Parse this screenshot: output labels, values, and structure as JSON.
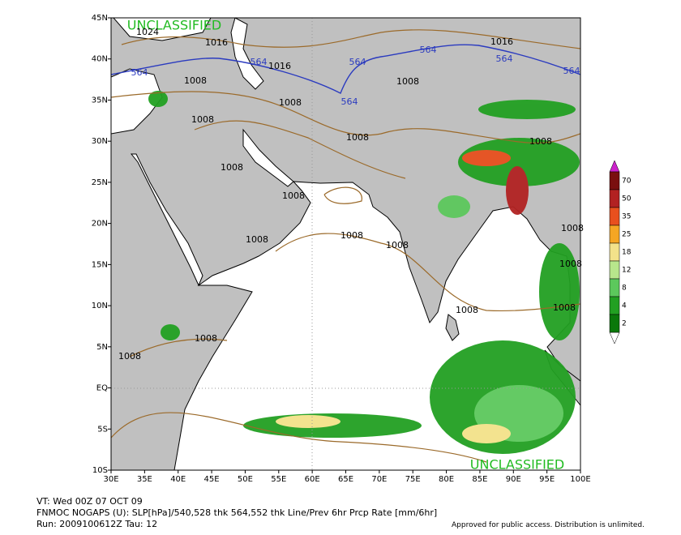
{
  "map": {
    "watermarks": [
      "UNCLASSIFIED",
      "UNCLASSIFIED"
    ],
    "lat_labels": [
      "45N",
      "40N",
      "35N",
      "30N",
      "25N",
      "20N",
      "15N",
      "10N",
      "5N",
      "EQ",
      "5S",
      "10S"
    ],
    "lon_labels": [
      "30E",
      "35E",
      "40E",
      "45E",
      "50E",
      "55E",
      "60E",
      "65E",
      "70E",
      "75E",
      "80E",
      "85E",
      "90E",
      "95E",
      "100E"
    ],
    "pressure_labels": [
      "1024",
      "1016",
      "1016",
      "1016",
      "1008",
      "1008",
      "1008",
      "1008",
      "1008",
      "1008",
      "1008",
      "1008",
      "1008",
      "1008",
      "1008",
      "1008",
      "1008",
      "1008",
      "1008",
      "1008",
      "1008"
    ],
    "thickness_labels": [
      "564",
      "564",
      "564",
      "564",
      "564",
      "564",
      "564"
    ],
    "colorbar": {
      "levels": [
        "70",
        "50",
        "35",
        "25",
        "18",
        "12",
        "8",
        "4",
        "2"
      ],
      "colors": [
        "#7a0f0f",
        "#b22222",
        "#e8501e",
        "#f5a623",
        "#f3e28a",
        "#b8e68c",
        "#5cc85c",
        "#22a022",
        "#0a780a"
      ]
    },
    "footer": {
      "valid_time": "VT: Wed 00Z 07 OCT 09",
      "description": "FNMOC NOGAPS (U): SLP[hPa]/540,528 thk 564,552 thk Line/Prev 6hr Prcp Rate [mm/6hr]",
      "run": "Run: 2009100612Z Tau: 12",
      "approval": "Approved for public access. Distribution is unlimited."
    }
  }
}
